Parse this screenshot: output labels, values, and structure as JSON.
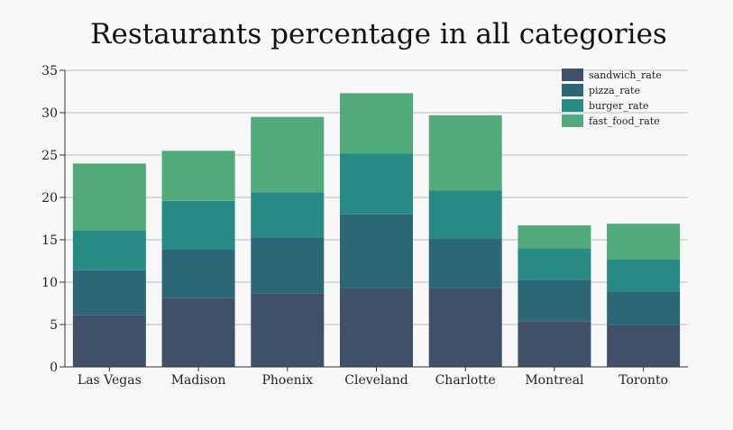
{
  "chart_data": {
    "type": "bar",
    "stacked": true,
    "title": "Restaurants percentage in all categories",
    "xlabel": "",
    "ylabel": "",
    "ylim": [
      0,
      35
    ],
    "yticks": [
      0,
      5,
      10,
      15,
      20,
      25,
      30,
      35
    ],
    "grid": "horizontal",
    "legend_position": "top-right",
    "categories": [
      "Las Vegas",
      "Madison",
      "Phoenix",
      "Cleveland",
      "Charlotte",
      "Montreal",
      "Toronto"
    ],
    "series": [
      {
        "name": "sandwich_rate",
        "color": "#405068",
        "values": [
          6.1,
          8.1,
          8.7,
          9.3,
          9.3,
          5.4,
          4.9
        ]
      },
      {
        "name": "pizza_rate",
        "color": "#2b6777",
        "values": [
          5.3,
          5.8,
          6.6,
          8.7,
          5.8,
          4.9,
          4.0
        ]
      },
      {
        "name": "burger_rate",
        "color": "#288a84",
        "values": [
          4.7,
          5.7,
          5.3,
          7.2,
          5.7,
          3.7,
          3.8
        ]
      },
      {
        "name": "fast_food_rate",
        "color": "#50aa7a",
        "values": [
          7.9,
          5.9,
          8.9,
          7.1,
          8.9,
          2.7,
          4.2
        ]
      }
    ]
  }
}
